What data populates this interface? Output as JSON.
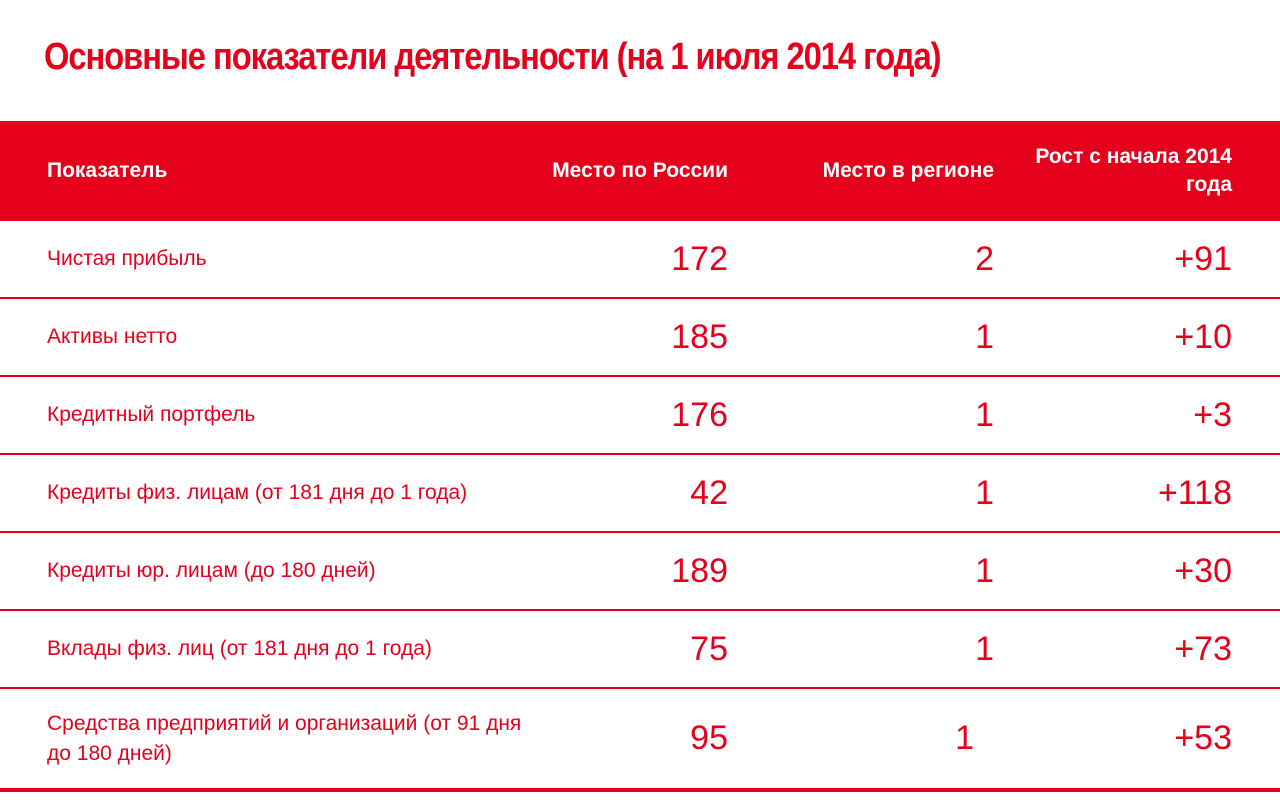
{
  "title": "Основные показатели деятельности (на 1 июля 2014 года)",
  "table": {
    "headers": {
      "indicator": "Показатель",
      "russia": "Место по России",
      "region": "Место в регионе",
      "growth": "Рост с начала 2014 года"
    },
    "rows": [
      {
        "name": "Чистая прибыль",
        "russia": "172",
        "region": "2",
        "growth": "+91"
      },
      {
        "name": "Активы нетто",
        "russia": "185",
        "region": "1",
        "growth": "+10"
      },
      {
        "name": "Кредитный портфель",
        "russia": "176",
        "region": "1",
        "growth": "+3"
      },
      {
        "name": "Кредиты физ. лицам (от 181 дня до 1 года)",
        "russia": "42",
        "region": "1",
        "growth": "+118"
      },
      {
        "name": "Кредиты юр. лицам (до 180 дней)",
        "russia": "189",
        "region": "1",
        "growth": "+30"
      },
      {
        "name": "Вклады физ. лиц (от 181 дня до 1 года)",
        "russia": "75",
        "region": "1",
        "growth": "+73"
      },
      {
        "name": "Средства предприятий и организаций (от 91 дня до 180 дней)",
        "russia": "95",
        "region": "1",
        "growth": "+53"
      }
    ]
  },
  "colors": {
    "accent": "#e5001c",
    "header_text": "#ffffff"
  }
}
